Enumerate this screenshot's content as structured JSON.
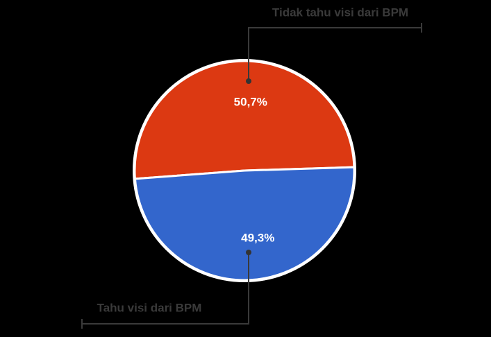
{
  "chart_data": {
    "type": "pie",
    "categories": [
      "Tidak tahu visi dari BPM",
      "Tahu visi dari BPM"
    ],
    "values": [
      50.7,
      49.3
    ],
    "value_labels": [
      "50,7%",
      "49,3%"
    ],
    "colors": [
      "#dc3912",
      "#3366cc"
    ]
  }
}
